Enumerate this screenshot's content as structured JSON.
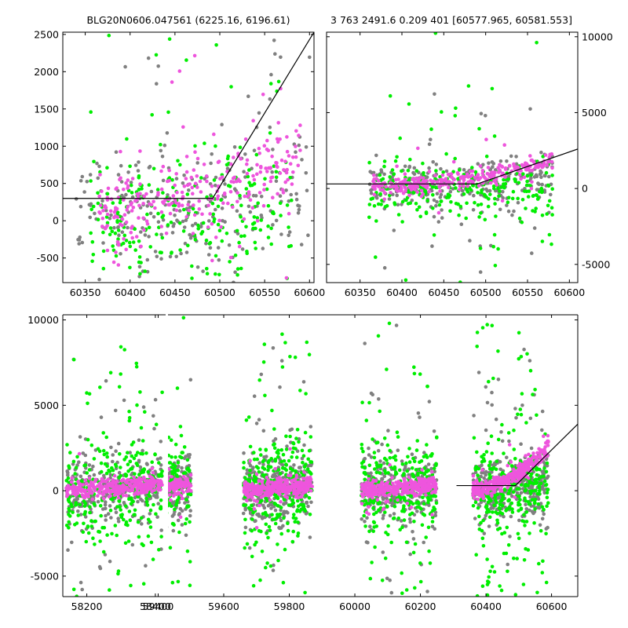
{
  "colors": {
    "gray": "#808080",
    "green": "#00ee00",
    "magenta": "#ee55dd",
    "model_line": "#000000",
    "frame": "#000000"
  },
  "titles": {
    "left": "BLG20N0606.047561 (6225.16, 6196.61)",
    "right": "3 763 2491.6 0.209 401 [60577.965, 60581.553]"
  },
  "chart_data": [
    {
      "id": "top_left",
      "type": "scatter",
      "title": "BLG20N0606.047561 (6225.16, 6196.61)",
      "xlim": [
        60325,
        60605
      ],
      "ylim": [
        -830,
        2530
      ],
      "xticks": [
        60350,
        60400,
        60450,
        60500,
        60550,
        60600
      ],
      "yticks": [
        -500,
        0,
        500,
        1000,
        1500,
        2000,
        2500
      ],
      "ytick_side": "left",
      "series": [
        {
          "color": "gray",
          "x_range": [
            60340,
            60600
          ],
          "base": [
            80,
            400
          ],
          "spread": 900,
          "outlier_frac": 0.2
        },
        {
          "color": "green",
          "x_range": [
            60355,
            60580
          ],
          "base": [
            0,
            60
          ],
          "spread": 800,
          "outlier_frac": 0.25
        },
        {
          "color": "magenta",
          "x_range": [
            60365,
            60590
          ],
          "base": [
            150,
            900
          ],
          "spread": 500,
          "outlier_frac": 0.1
        }
      ],
      "model": {
        "x": [
          60325,
          60492,
          60605
        ],
        "y": [
          300,
          300,
          2530
        ]
      }
    },
    {
      "id": "top_right",
      "type": "scatter",
      "title": "3 763 2491.6 0.209 401 [60577.965, 60581.553]",
      "xlim": [
        60310,
        60610
      ],
      "ylim": [
        -6200,
        10300
      ],
      "xticks": [
        60350,
        60400,
        60450,
        60500,
        60550,
        60600
      ],
      "yticks": [
        -5000,
        0,
        5000,
        10000
      ],
      "ytick_side": "right",
      "series": [
        {
          "color": "gray",
          "x_range": [
            60360,
            60580
          ],
          "base": [
            100,
            900
          ],
          "spread": 1500,
          "outlier_frac": 0.18
        },
        {
          "color": "green",
          "x_range": [
            60360,
            60580
          ],
          "base": [
            0,
            100
          ],
          "spread": 1800,
          "outlier_frac": 0.22
        },
        {
          "color": "magenta",
          "x_range": [
            60365,
            60580
          ],
          "base": [
            150,
            1900
          ],
          "spread": 600,
          "outlier_frac": 0.05
        }
      ],
      "model": {
        "x": [
          60310,
          60490,
          60610
        ],
        "y": [
          300,
          300,
          2600
        ]
      }
    },
    {
      "id": "bottom",
      "type": "scatter",
      "title": "",
      "xlim_segments": [
        [
          58130,
          58430
        ],
        [
          59430,
          60680
        ]
      ],
      "xticks_left": [
        58200,
        58400
      ],
      "xticks_right": [
        59400,
        59600,
        59800,
        60000,
        60200,
        60400,
        60600
      ],
      "ylim": [
        -6200,
        10300
      ],
      "yticks": [
        -5000,
        0,
        5000,
        10000
      ],
      "ytick_side": "left",
      "seasons": [
        [
          58140,
          58420
        ],
        [
          59280,
          59500
        ],
        [
          59660,
          59870
        ],
        [
          60020,
          60250
        ],
        [
          60360,
          60590
        ]
      ],
      "series": [
        {
          "color": "gray",
          "base": [
            0,
            600
          ],
          "spread": 1800,
          "outlier_frac": 0.15
        },
        {
          "color": "green",
          "base": [
            0,
            100
          ],
          "spread": 2500,
          "outlier_frac": 0.25
        },
        {
          "color": "magenta",
          "base": [
            100,
            600
          ],
          "spread": 500,
          "outlier_frac": 0.03
        }
      ],
      "model": {
        "x": [
          60310,
          60490,
          60680
        ],
        "y": [
          300,
          300,
          3900
        ]
      }
    }
  ]
}
